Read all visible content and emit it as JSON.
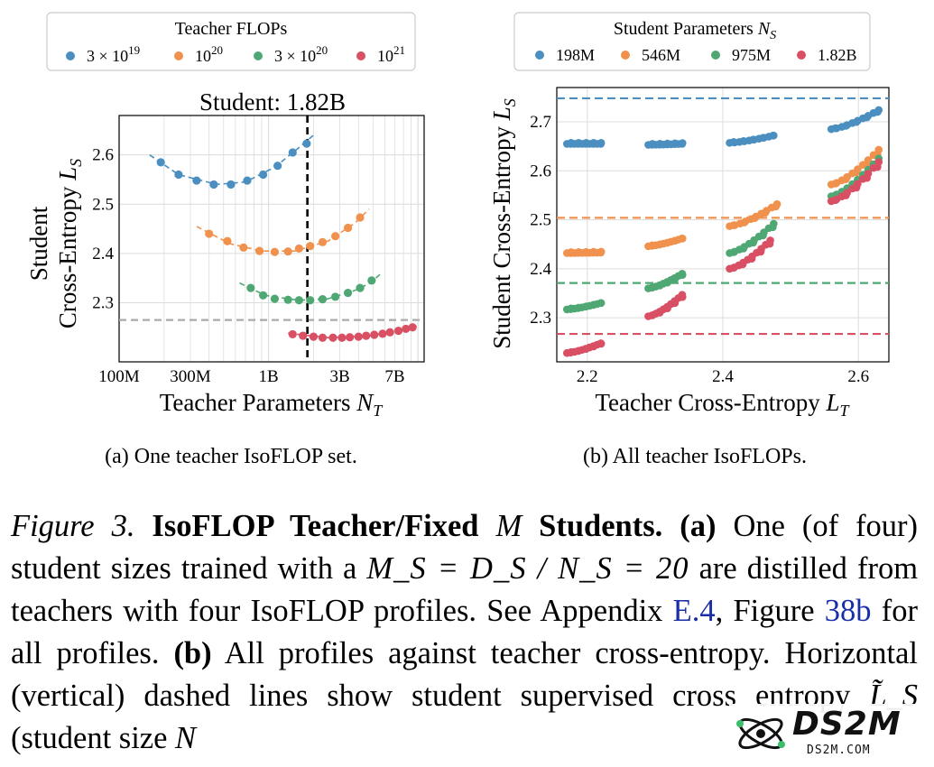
{
  "chart_data": [
    {
      "type": "scatter",
      "title": "Student: 1.82B",
      "xlabel": "Teacher Parameters N_T",
      "ylabel_line1": "Student",
      "ylabel_line2": "Cross-Entropy L_S",
      "xscale": "log",
      "xlim": [
        100000000,
        11000000000
      ],
      "ylim": [
        2.18,
        2.68
      ],
      "xticks": [
        {
          "value": 100000000,
          "label": "100M"
        },
        {
          "value": 300000000,
          "label": "300M"
        },
        {
          "value": 1000000000,
          "label": "1B"
        },
        {
          "value": 3000000000,
          "label": "3B"
        },
        {
          "value": 7000000000,
          "label": "7B"
        }
      ],
      "yticks": [
        2.3,
        2.4,
        2.5,
        2.6
      ],
      "grid": true,
      "vline": 1820000000,
      "hline": {
        "value": 2.265,
        "color": "#aaaaaa"
      },
      "legend": {
        "title": "Teacher FLOPs",
        "position": "top",
        "entries": [
          {
            "label": "3 × 10^19",
            "base": "3 × 10",
            "exp": "19"
          },
          {
            "label": "10^20",
            "base": "10",
            "exp": "20"
          },
          {
            "label": "3 × 10^20",
            "base": "3 × 10",
            "exp": "20"
          },
          {
            "label": "10^21",
            "base": "10",
            "exp": "21"
          }
        ]
      },
      "series": [
        {
          "name": "3 × 10^19",
          "color": "#4a8fc0",
          "points": [
            [
              190000000,
              2.585
            ],
            [
              250000000,
              2.56
            ],
            [
              330000000,
              2.548
            ],
            [
              430000000,
              2.54
            ],
            [
              560000000,
              2.54
            ],
            [
              720000000,
              2.548
            ],
            [
              920000000,
              2.56
            ],
            [
              1150000000,
              2.578
            ],
            [
              1450000000,
              2.605
            ],
            [
              1800000000,
              2.623
            ]
          ],
          "fit": [
            [
              160000000,
              2.6
            ],
            [
              250000000,
              2.56
            ],
            [
              450000000,
              2.54
            ],
            [
              700000000,
              2.545
            ],
            [
              1100000000,
              2.575
            ],
            [
              1600000000,
              2.615
            ],
            [
              2000000000,
              2.64
            ]
          ]
        },
        {
          "name": "10^20",
          "color": "#f0924d",
          "points": [
            [
              400000000,
              2.44
            ],
            [
              530000000,
              2.425
            ],
            [
              680000000,
              2.412
            ],
            [
              870000000,
              2.405
            ],
            [
              1100000000,
              2.403
            ],
            [
              1350000000,
              2.404
            ],
            [
              1600000000,
              2.41
            ],
            [
              1900000000,
              2.415
            ],
            [
              2300000000,
              2.423
            ],
            [
              2800000000,
              2.435
            ],
            [
              3400000000,
              2.452
            ],
            [
              4100000000,
              2.473
            ]
          ],
          "fit": [
            [
              330000000,
              2.455
            ],
            [
              550000000,
              2.42
            ],
            [
              900000000,
              2.405
            ],
            [
              1500000000,
              2.405
            ],
            [
              2500000000,
              2.425
            ],
            [
              3800000000,
              2.462
            ],
            [
              4700000000,
              2.49
            ]
          ]
        },
        {
          "name": "3 × 10^20",
          "color": "#4fa874",
          "points": [
            [
              760000000,
              2.33
            ],
            [
              920000000,
              2.315
            ],
            [
              1100000000,
              2.308
            ],
            [
              1350000000,
              2.306
            ],
            [
              1600000000,
              2.305
            ],
            [
              1900000000,
              2.305
            ],
            [
              2300000000,
              2.307
            ],
            [
              2800000000,
              2.312
            ],
            [
              3400000000,
              2.32
            ],
            [
              4100000000,
              2.33
            ],
            [
              4900000000,
              2.345
            ]
          ],
          "fit": [
            [
              640000000,
              2.34
            ],
            [
              950000000,
              2.315
            ],
            [
              1600000000,
              2.305
            ],
            [
              2500000000,
              2.308
            ],
            [
              3800000000,
              2.325
            ],
            [
              4800000000,
              2.34
            ],
            [
              5700000000,
              2.36
            ]
          ]
        },
        {
          "name": "10^21",
          "color": "#d94f63",
          "points": [
            [
              1450000000,
              2.236
            ],
            [
              1700000000,
              2.233
            ],
            [
              2000000000,
              2.231
            ],
            [
              2300000000,
              2.229
            ],
            [
              2700000000,
              2.229
            ],
            [
              3100000000,
              2.229
            ],
            [
              3500000000,
              2.23
            ],
            [
              4000000000,
              2.231
            ],
            [
              4500000000,
              2.233
            ],
            [
              5100000000,
              2.235
            ],
            [
              5800000000,
              2.237
            ],
            [
              6500000000,
              2.24
            ],
            [
              7400000000,
              2.243
            ],
            [
              8300000000,
              2.247
            ],
            [
              9200000000,
              2.25
            ]
          ],
          "fit": [
            [
              1350000000,
              2.238
            ],
            [
              2500000000,
              2.229
            ],
            [
              4500000000,
              2.232
            ],
            [
              7500000000,
              2.243
            ],
            [
              9800000000,
              2.253
            ]
          ]
        }
      ],
      "caption": "(a) One teacher IsoFLOP set."
    },
    {
      "type": "scatter",
      "title": "",
      "xlabel": "Teacher Cross-Entropy L_T",
      "ylabel": "Student Cross-Entropy L_S",
      "xlim": [
        2.155,
        2.645
      ],
      "ylim": [
        2.21,
        2.77
      ],
      "xticks": [
        2.2,
        2.4,
        2.6
      ],
      "yticks": [
        2.3,
        2.4,
        2.5,
        2.6,
        2.7
      ],
      "grid": true,
      "hlines": [
        {
          "value": 2.748,
          "color": "#4a8fc0"
        },
        {
          "value": 2.504,
          "color": "#f0924d"
        },
        {
          "value": 2.371,
          "color": "#4fa874"
        },
        {
          "value": 2.267,
          "color": "#d94f63"
        }
      ],
      "legend": {
        "title": "Student Parameters N_S",
        "position": "top",
        "entries": [
          {
            "label": "198M"
          },
          {
            "label": "546M"
          },
          {
            "label": "975M"
          },
          {
            "label": "1.82B"
          }
        ]
      },
      "series": [
        {
          "name": "198M",
          "color": "#4a8fc0",
          "clusters": [
            {
              "x": [
                2.17,
                2.22
              ],
              "y": [
                2.655,
                2.655
              ]
            },
            {
              "x": [
                2.29,
                2.34
              ],
              "y": [
                2.653,
                2.655
              ]
            },
            {
              "x": [
                2.41,
                2.475
              ],
              "y": [
                2.657,
                2.672
              ]
            },
            {
              "x": [
                2.56,
                2.63
              ],
              "y": [
                2.685,
                2.724
              ]
            }
          ]
        },
        {
          "name": "546M",
          "color": "#f0924d",
          "clusters": [
            {
              "x": [
                2.17,
                2.22
              ],
              "y": [
                2.432,
                2.433
              ]
            },
            {
              "x": [
                2.29,
                2.34
              ],
              "y": [
                2.446,
                2.462
              ]
            },
            {
              "x": [
                2.41,
                2.48
              ],
              "y": [
                2.487,
                2.532
              ]
            },
            {
              "x": [
                2.56,
                2.63
              ],
              "y": [
                2.572,
                2.643
              ]
            }
          ]
        },
        {
          "name": "975M",
          "color": "#4fa874",
          "clusters": [
            {
              "x": [
                2.17,
                2.22
              ],
              "y": [
                2.317,
                2.33
              ]
            },
            {
              "x": [
                2.29,
                2.34
              ],
              "y": [
                2.36,
                2.39
              ]
            },
            {
              "x": [
                2.41,
                2.475
              ],
              "y": [
                2.432,
                2.492
              ]
            },
            {
              "x": [
                2.56,
                2.63
              ],
              "y": [
                2.548,
                2.625
              ]
            }
          ]
        },
        {
          "name": "1.82B",
          "color": "#d94f63",
          "clusters": [
            {
              "x": [
                2.17,
                2.22
              ],
              "y": [
                2.228,
                2.248
              ]
            },
            {
              "x": [
                2.29,
                2.34
              ],
              "y": [
                2.303,
                2.347
              ]
            },
            {
              "x": [
                2.41,
                2.47
              ],
              "y": [
                2.4,
                2.458
              ]
            },
            {
              "x": [
                2.56,
                2.63
              ],
              "y": [
                2.538,
                2.618
              ]
            }
          ]
        }
      ],
      "caption": "(b) All teacher IsoFLOPs."
    }
  ],
  "caption": {
    "figure_label": "Figure 3.",
    "title": "IsoFLOP Teacher/Fixed",
    "title_var": "M",
    "title_end": "Students.",
    "a_marker": "(a)",
    "a_text_1": "One (of four) student sizes trained with a",
    "a_math": "M_S = D_S / N_S = 20",
    "a_text_2": "are distilled from teachers with four IsoFLOP profiles. See Appendix",
    "ref1": "E.4",
    "mid": ", Figure",
    "ref2": "38b",
    "a_text_3": "for all profiles.",
    "b_marker": "(b)",
    "b_text": "All profiles against teacher cross-entropy. Horizontal (vertical) dashed lines show student supervised cross entropy",
    "b_math": "L̃_S",
    "b_tail": "(student size",
    "b_tail_var": "N"
  },
  "watermark": {
    "brand": "DS2M",
    "sub": "DS2M.COM"
  }
}
